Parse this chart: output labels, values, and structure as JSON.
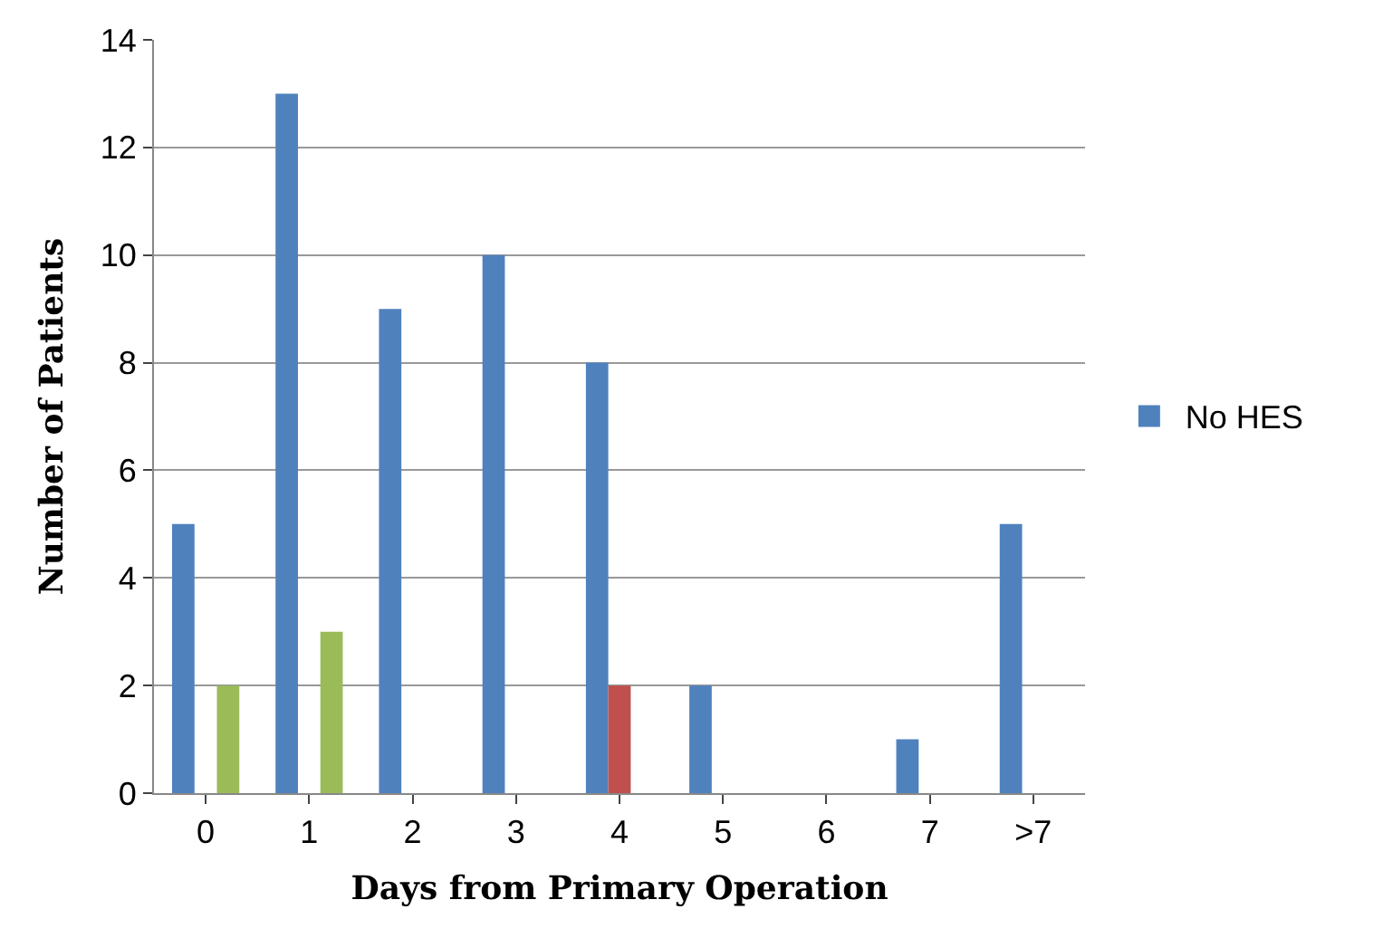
{
  "chart_data": {
    "type": "bar",
    "xlabel": "Days from Primary Operation",
    "ylabel": "Number of Patients",
    "categories": [
      "0",
      "1",
      "2",
      "3",
      "4",
      "5",
      "6",
      "7",
      ">7"
    ],
    "series": [
      {
        "name": "No HES",
        "color": "#4f81bd",
        "values": [
          5,
          13,
          9,
          10,
          8,
          2,
          0,
          1,
          5
        ]
      },
      {
        "color": "#c0504d",
        "values": [
          0,
          0,
          0,
          0,
          2,
          0,
          0,
          0,
          0
        ]
      },
      {
        "color": "#9bbb59",
        "values": [
          2,
          3,
          0,
          0,
          0,
          0,
          0,
          0,
          0
        ]
      }
    ],
    "ylim": [
      0,
      14
    ],
    "yticks": [
      0,
      2,
      4,
      6,
      8,
      10,
      12,
      14
    ],
    "grid": "y",
    "legend": "right"
  }
}
